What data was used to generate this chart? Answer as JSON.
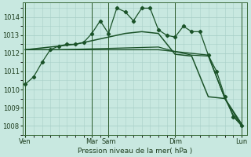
{
  "bg_color": "#c8e8e0",
  "grid_color": "#a8cfc8",
  "line_color": "#1a5228",
  "xlabel": "Pression niveau de la mer( hPa )",
  "ylim": [
    1007.5,
    1014.8
  ],
  "yticks": [
    1008,
    1009,
    1010,
    1011,
    1012,
    1013,
    1014
  ],
  "xtick_labels": [
    "Ven",
    "Mar",
    "Sam",
    "Dim",
    "Lun"
  ],
  "xtick_positions": [
    0,
    24,
    30,
    54,
    78
  ],
  "vlines": [
    0,
    24,
    30,
    54,
    78
  ],
  "series1": {
    "x": [
      0,
      3,
      6,
      9,
      12,
      15,
      18,
      21,
      24,
      27,
      30,
      33,
      36,
      39,
      42,
      45,
      48,
      51,
      54,
      57,
      60,
      63,
      66,
      69,
      72,
      75,
      78
    ],
    "y": [
      1010.3,
      1010.7,
      1011.5,
      1012.2,
      1012.4,
      1012.5,
      1012.5,
      1012.6,
      1013.1,
      1013.8,
      1013.1,
      1014.5,
      1014.3,
      1013.8,
      1014.5,
      1014.5,
      1013.3,
      1013.0,
      1012.9,
      1013.5,
      1013.2,
      1013.2,
      1011.9,
      1011.0,
      1009.6,
      1008.5,
      1008.0
    ]
  },
  "series2": {
    "x": [
      0,
      6,
      12,
      18,
      24,
      30,
      36,
      42,
      48,
      54,
      60,
      66,
      72,
      78
    ],
    "y": [
      1012.2,
      1012.3,
      1012.4,
      1012.5,
      1012.7,
      1012.9,
      1013.1,
      1013.2,
      1013.1,
      1011.95,
      1011.85,
      1009.6,
      1009.5,
      1008.1
    ]
  },
  "series3": {
    "x": [
      0,
      12,
      24,
      36,
      48,
      54,
      60,
      66,
      72,
      78
    ],
    "y": [
      1012.2,
      1012.2,
      1012.2,
      1012.2,
      1012.2,
      1012.1,
      1012.0,
      1011.9,
      1009.5,
      1008.0
    ]
  },
  "series4": {
    "x": [
      0,
      12,
      24,
      36,
      48,
      54,
      60,
      66,
      72,
      75,
      78
    ],
    "y": [
      1012.2,
      1012.2,
      1012.25,
      1012.3,
      1012.35,
      1012.1,
      1011.9,
      1011.85,
      1009.5,
      1008.6,
      1008.0
    ]
  }
}
